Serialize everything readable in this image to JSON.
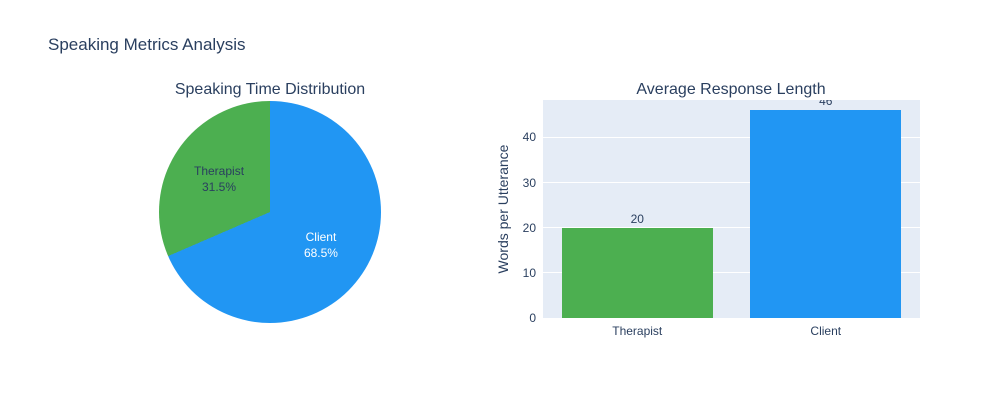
{
  "figure": {
    "title": "Speaking Metrics Analysis",
    "text_color": "#2a3f5f",
    "background": "#ffffff"
  },
  "chart_data": [
    {
      "type": "pie",
      "title": "Speaking Time Distribution",
      "categories": [
        "Therapist",
        "Client"
      ],
      "values": [
        31.5,
        68.5
      ],
      "slices": [
        {
          "label": "Therapist",
          "pct": 31.5,
          "pct_label": "31.5%",
          "color": "#4caf50",
          "text_color": "#2a3f5f"
        },
        {
          "label": "Client",
          "pct": 68.5,
          "pct_label": "68.5%",
          "color": "#2196f3",
          "text_color": "#ffffff"
        }
      ],
      "layout_hints": {
        "start": "top",
        "direction": "clockwise",
        "sorted": "descending",
        "legend": "none"
      }
    },
    {
      "type": "bar",
      "title": "Average Response Length",
      "categories": [
        "Therapist",
        "Client"
      ],
      "values": [
        20,
        46
      ],
      "bar_labels": [
        "20",
        "46"
      ],
      "bar_colors": [
        "#4caf50",
        "#2196f3"
      ],
      "xlabel": "",
      "ylabel": "Words per Utterance",
      "ylim": [
        0,
        48.3
      ],
      "yticks": [
        0,
        10,
        20,
        30,
        40
      ],
      "grid": true,
      "plot_bg": "#e5ecf6",
      "gridline_color": "#ffffff",
      "legend": "none"
    }
  ]
}
